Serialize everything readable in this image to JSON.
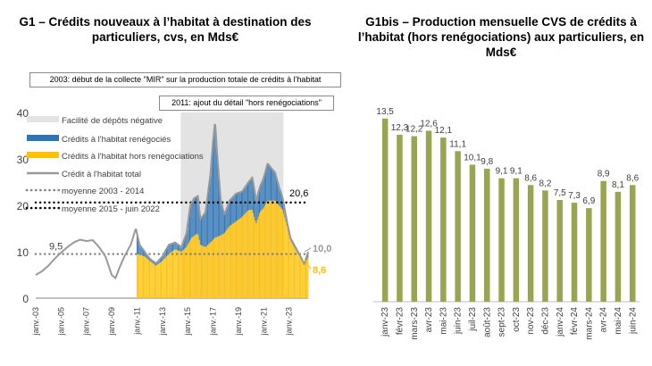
{
  "chart_data": [
    {
      "type": "bar",
      "title": "G1 – Crédits nouveaux à l’habitat à destination des particuliers, cvs, en Mds€",
      "ylim": [
        0,
        40
      ],
      "yticks": [
        "0",
        "10",
        "20",
        "30",
        "40"
      ],
      "xticks": [
        "janv.-03",
        "janv.-05",
        "janv.-07",
        "janv.-09",
        "janv.-11",
        "janv.-13",
        "janv.-15",
        "janv.-17",
        "janv.-19",
        "janv.-21",
        "janv.-23"
      ],
      "annotations": {
        "mir_2003": "2003: début de la collecte \"MIR\" sur la production totale de crédits à l'habitat",
        "detail_2011": "2011: ajout du détail \"hors renégociations\""
      },
      "legend": [
        {
          "label": "Facilité de dépôts négative",
          "color": "#e3e3e3",
          "kind": "box"
        },
        {
          "label": "Crédits à l'habitat renégociés",
          "color": "#2e75b6",
          "kind": "box"
        },
        {
          "label": "Crédits à l'habitat hors renégociations",
          "color": "#ffc000",
          "kind": "box"
        },
        {
          "label": "Crédit à l'habitat total",
          "color": "#999999",
          "kind": "line"
        },
        {
          "label": "moyenne 2003 - 2014",
          "color": "#808080",
          "kind": "dots"
        },
        {
          "label": "moyenne 2015 - juin 2022",
          "color": "#000000",
          "kind": "dots"
        }
      ],
      "references": {
        "avg_2003_2014": 9.5,
        "avg_2015_2022": 20.6
      },
      "labels": {
        "avg_2003_2014": "9,5",
        "avg_2015_2022": "20,6",
        "last_total": "10,0",
        "last_hors": "8,6"
      },
      "start_year": 2003,
      "total_anchors": [
        [
          2003.0,
          5.0
        ],
        [
          2003.5,
          5.8
        ],
        [
          2004.0,
          7.0
        ],
        [
          2004.5,
          8.5
        ],
        [
          2005.0,
          9.8
        ],
        [
          2005.5,
          11.0
        ],
        [
          2006.0,
          12.0
        ],
        [
          2006.5,
          12.6
        ],
        [
          2007.0,
          12.3
        ],
        [
          2007.5,
          12.5
        ],
        [
          2008.0,
          11.0
        ],
        [
          2008.5,
          9.0
        ],
        [
          2009.0,
          5.0
        ],
        [
          2009.3,
          4.3
        ],
        [
          2009.6,
          6.5
        ],
        [
          2010.0,
          9.0
        ],
        [
          2010.5,
          11.5
        ],
        [
          2010.9,
          15.0
        ],
        [
          2011.2,
          11.5
        ],
        [
          2011.6,
          10.0
        ],
        [
          2012.0,
          8.5
        ],
        [
          2012.5,
          7.5
        ],
        [
          2013.0,
          9.0
        ],
        [
          2013.5,
          11.5
        ],
        [
          2014.0,
          12.0
        ],
        [
          2014.5,
          11.0
        ],
        [
          2014.9,
          14.0
        ],
        [
          2015.2,
          20.0
        ],
        [
          2015.5,
          21.5
        ],
        [
          2015.8,
          22.0
        ],
        [
          2016.0,
          17.0
        ],
        [
          2016.4,
          18.5
        ],
        [
          2016.8,
          27.0
        ],
        [
          2017.0,
          34.0
        ],
        [
          2017.15,
          38.0
        ],
        [
          2017.35,
          30.0
        ],
        [
          2017.6,
          21.0
        ],
        [
          2017.9,
          18.0
        ],
        [
          2018.3,
          21.0
        ],
        [
          2018.8,
          22.5
        ],
        [
          2019.3,
          23.0
        ],
        [
          2019.8,
          25.0
        ],
        [
          2020.1,
          26.0
        ],
        [
          2020.4,
          21.0
        ],
        [
          2020.7,
          24.0
        ],
        [
          2021.0,
          26.0
        ],
        [
          2021.3,
          29.0
        ],
        [
          2021.6,
          28.0
        ],
        [
          2021.9,
          27.0
        ],
        [
          2022.2,
          24.0
        ],
        [
          2022.5,
          21.5
        ],
        [
          2022.8,
          17.0
        ],
        [
          2023.1,
          13.0
        ],
        [
          2023.5,
          11.0
        ],
        [
          2023.9,
          9.0
        ],
        [
          2024.2,
          7.3
        ],
        [
          2024.5,
          10.0
        ]
      ],
      "hors_anchors": [
        [
          2011.0,
          9.5
        ],
        [
          2011.6,
          9.0
        ],
        [
          2012.0,
          8.0
        ],
        [
          2012.5,
          7.0
        ],
        [
          2013.0,
          8.0
        ],
        [
          2013.5,
          9.5
        ],
        [
          2014.0,
          10.5
        ],
        [
          2014.5,
          10.0
        ],
        [
          2014.9,
          11.0
        ],
        [
          2015.3,
          13.0
        ],
        [
          2015.8,
          14.0
        ],
        [
          2016.0,
          11.5
        ],
        [
          2016.4,
          11.0
        ],
        [
          2016.8,
          12.0
        ],
        [
          2017.15,
          13.0
        ],
        [
          2017.6,
          13.5
        ],
        [
          2017.9,
          14.0
        ],
        [
          2018.3,
          15.5
        ],
        [
          2018.8,
          16.5
        ],
        [
          2019.3,
          17.5
        ],
        [
          2019.8,
          19.0
        ],
        [
          2020.1,
          19.0
        ],
        [
          2020.4,
          16.0
        ],
        [
          2020.7,
          18.5
        ],
        [
          2021.0,
          19.5
        ],
        [
          2021.3,
          21.0
        ],
        [
          2021.6,
          21.0
        ],
        [
          2021.9,
          21.0
        ],
        [
          2022.2,
          20.0
        ],
        [
          2022.5,
          19.0
        ],
        [
          2022.8,
          16.0
        ],
        [
          2023.1,
          12.5
        ],
        [
          2023.5,
          10.5
        ],
        [
          2023.9,
          8.7
        ],
        [
          2024.2,
          7.0
        ],
        [
          2024.5,
          8.6
        ]
      ]
    },
    {
      "type": "bar",
      "title": "G1bis – Production mensuelle CVS de crédits à l’habitat (hors renégociations) aux particuliers, en Mds€",
      "color": "#9aa552",
      "categories": [
        "janv-23",
        "févr-23",
        "mars-23",
        "avr-23",
        "mai-23",
        "juin-23",
        "juil-23",
        "août-23",
        "sept-23",
        "oct-23",
        "nov-23",
        "déc-23",
        "janv-24",
        "févr-24",
        "mars-24",
        "avr-24",
        "mai-24",
        "juin-24"
      ],
      "values": [
        13.5,
        12.3,
        12.2,
        12.6,
        12.1,
        11.1,
        10.1,
        9.8,
        9.1,
        9.1,
        8.6,
        8.2,
        7.5,
        7.3,
        6.9,
        8.9,
        8.1,
        8.6
      ],
      "labels": [
        "13,5",
        "12,3",
        "12,2",
        "12,6",
        "12,1",
        "11,1",
        "10,1",
        "9,8",
        "9,1",
        "9,1",
        "8,6",
        "8,2",
        "7,5",
        "7,3",
        "6,9",
        "8,9",
        "8,1",
        "8,6"
      ],
      "ylim": [
        0,
        15
      ]
    }
  ]
}
